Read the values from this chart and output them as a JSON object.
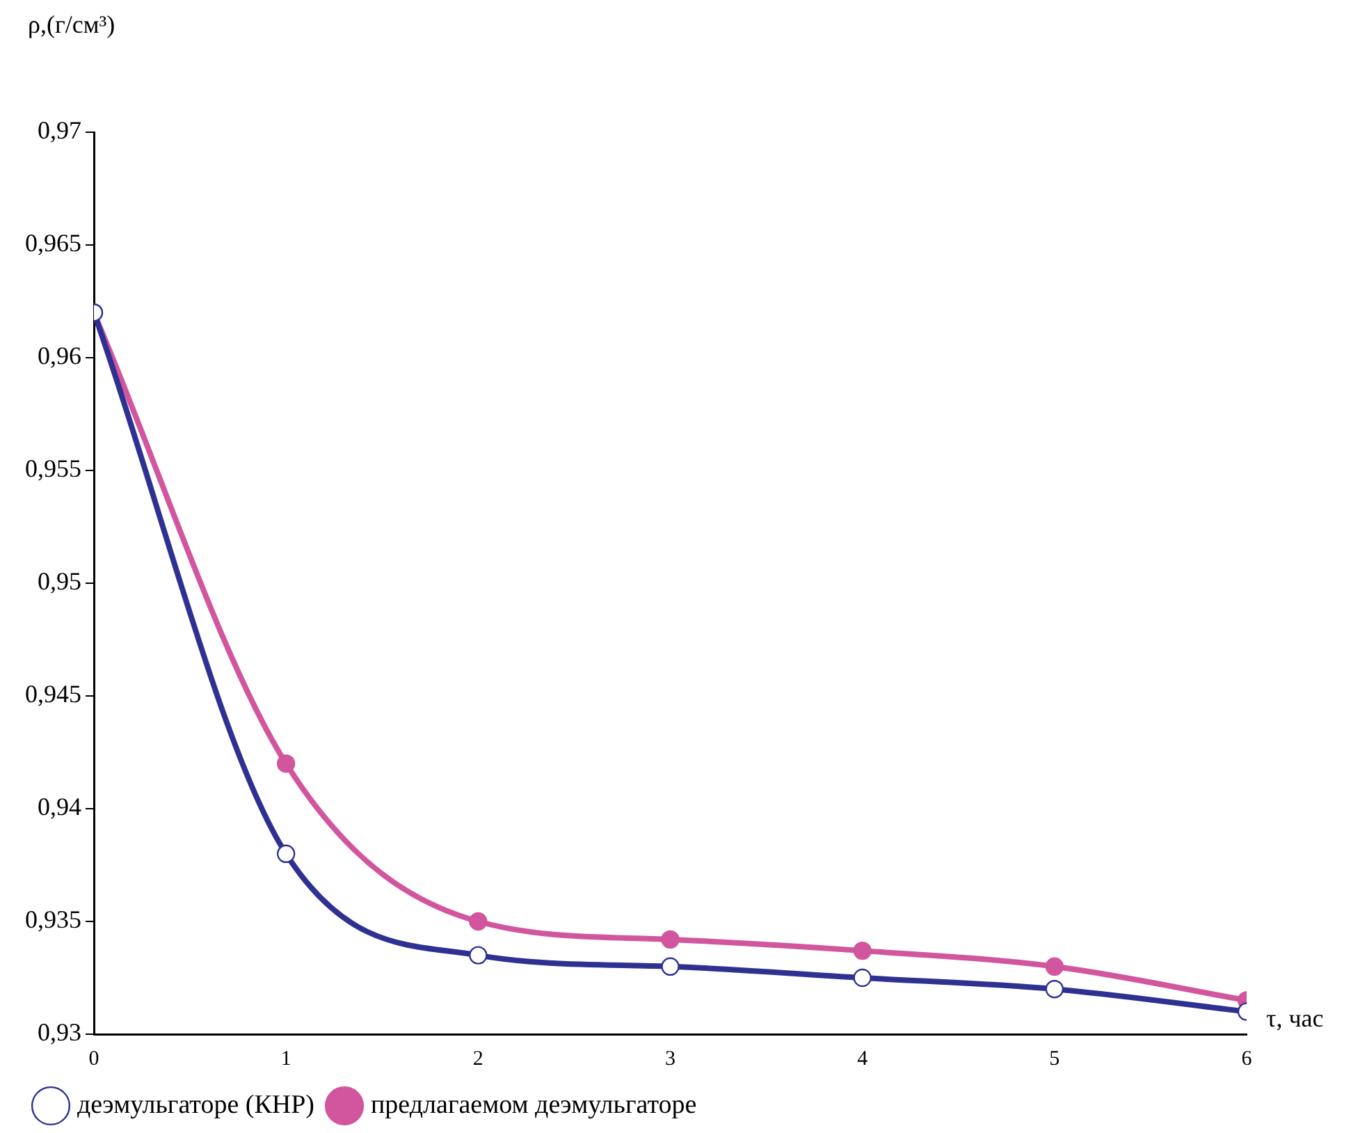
{
  "chart_data": {
    "type": "line",
    "ylabel": "ρ,(г/см³)",
    "xlabel": "τ, час",
    "x": [
      0,
      1,
      2,
      3,
      4,
      5,
      6
    ],
    "xlim": [
      0,
      6
    ],
    "xticks": [
      0,
      1,
      2,
      3,
      4,
      5,
      6
    ],
    "ylim": [
      0.93,
      0.97
    ],
    "yticks": [
      {
        "value": 0.93,
        "label": "0,93"
      },
      {
        "value": 0.935,
        "label": "0,935"
      },
      {
        "value": 0.94,
        "label": "0,94"
      },
      {
        "value": 0.945,
        "label": "0,945"
      },
      {
        "value": 0.95,
        "label": "0,95"
      },
      {
        "value": 0.955,
        "label": "0,955"
      },
      {
        "value": 0.96,
        "label": "0,96"
      },
      {
        "value": 0.965,
        "label": "0,965"
      },
      {
        "value": 0.97,
        "label": "0,97"
      }
    ],
    "grid": false,
    "legend": "bottom",
    "line_style": "solid",
    "series": [
      {
        "name": "деэмульгаторе (КНР)",
        "color": "#2e3192",
        "marker": "circle",
        "values": [
          0.962,
          0.938,
          0.9335,
          0.933,
          0.9325,
          0.932,
          0.931
        ]
      },
      {
        "name": "предлагаемом деэмульгаторе",
        "color": "#d1569e",
        "marker": "circle",
        "values": [
          0.962,
          0.942,
          0.935,
          0.9342,
          0.9337,
          0.933,
          0.9315
        ]
      }
    ]
  }
}
